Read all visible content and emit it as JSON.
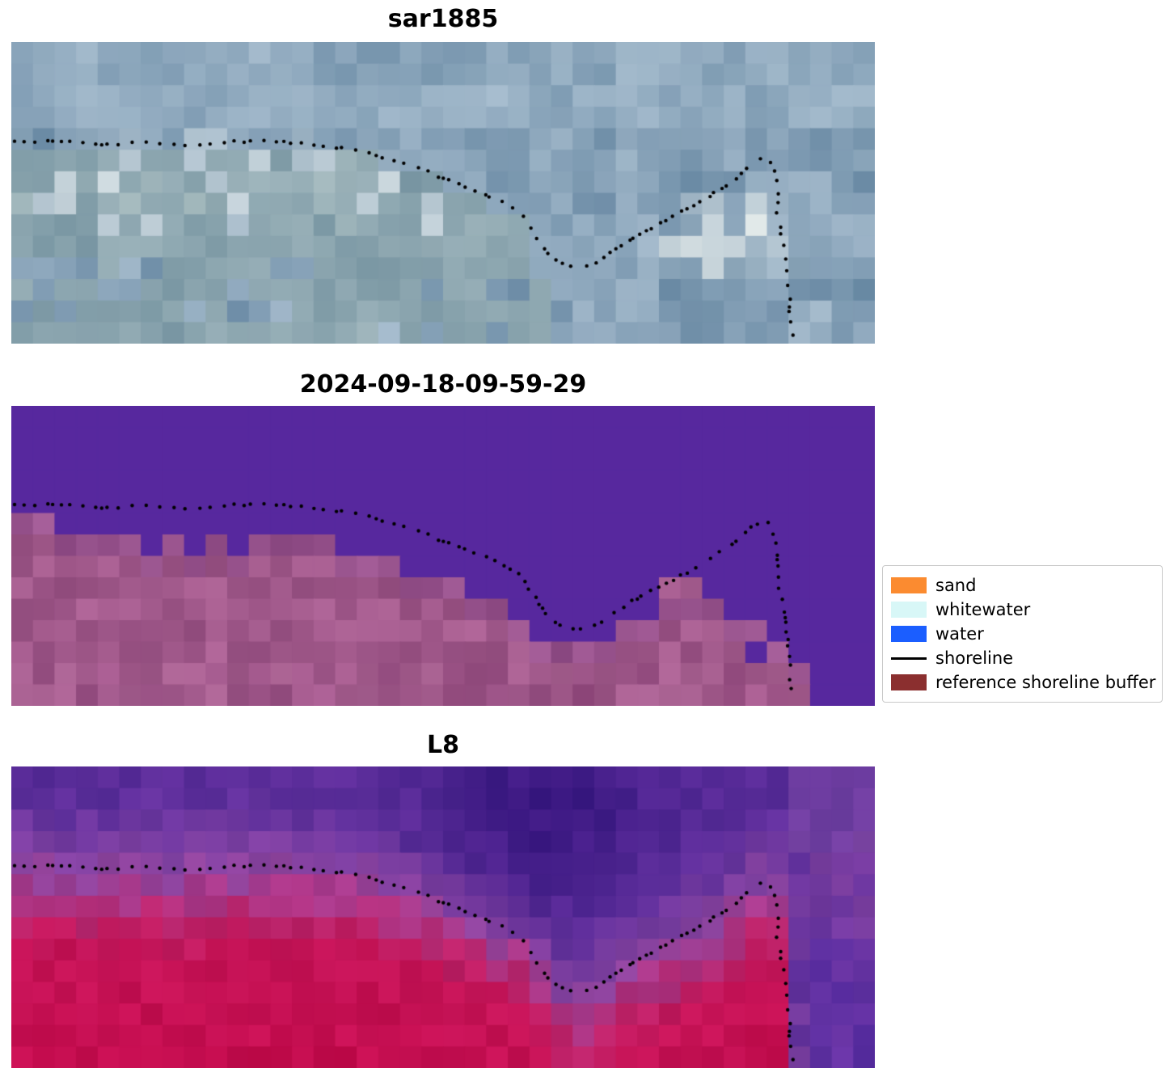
{
  "figure": {
    "panels": [
      {
        "title": "sar1885"
      },
      {
        "title": "2024-09-18-09-59-29"
      },
      {
        "title": "L8"
      }
    ],
    "legend": {
      "items": [
        {
          "label": "sand",
          "type": "patch",
          "color": "#fb8b30"
        },
        {
          "label": "whitewater",
          "type": "patch",
          "color": "#d8f7f7"
        },
        {
          "label": "water",
          "type": "patch",
          "color": "#1b5eff"
        },
        {
          "label": "shoreline",
          "type": "line",
          "color": "#000000"
        },
        {
          "label": "reference shoreline buffer",
          "type": "patch",
          "color": "#8b2f2f"
        }
      ]
    }
  },
  "chart_data": {
    "type": "heatmap",
    "title": "Coastal shoreline detection figure with three coregistered image tiles",
    "legend_position": "center right",
    "panels": [
      {
        "title": "sar1885",
        "kind": "optical-cloudy",
        "palette": {
          "deep": "#87a2b8",
          "mid": "#aabfd0",
          "pale": "#ccdae3",
          "white": "#f7faf5",
          "green": "#94ac9f"
        }
      },
      {
        "title": "2024-09-18-09-59-29",
        "kind": "classified",
        "water_color": "#57289e",
        "land_color": "#b2679a",
        "land_light": "#cd8cb1",
        "land_start_row": [
          5,
          5,
          6,
          6,
          6,
          6,
          7,
          6,
          7,
          6,
          7,
          6,
          6,
          6,
          6,
          7,
          7,
          7,
          8,
          8,
          8,
          9,
          9,
          10,
          11,
          11,
          11,
          11,
          10,
          10,
          9,
          9,
          9,
          10,
          10,
          11,
          12,
          14,
          14,
          14
        ],
        "land_islands": [
          [
            30,
            8
          ],
          [
            31,
            8
          ]
        ],
        "water_holes": [
          [
            34,
            11
          ]
        ]
      },
      {
        "title": "L8",
        "kind": "false-color",
        "ramp": [
          [
            -0.6,
            "#5b2c9c"
          ],
          [
            -0.25,
            "#6a35a5"
          ],
          [
            -0.1,
            "#8a46ab"
          ],
          [
            -0.02,
            "#9d4aa6"
          ],
          [
            0.04,
            "#b43e93"
          ],
          [
            0.12,
            "#c62973"
          ],
          [
            0.22,
            "#d01960"
          ],
          [
            0.6,
            "#cf1257"
          ]
        ],
        "dark_blob": "#481f8c",
        "right_water": "#6533ae",
        "right_top": "#a066b5"
      }
    ],
    "grid": {
      "cols": 40,
      "rows": 14
    },
    "coast_profile": [
      [
        0,
        0.335
      ],
      [
        0.06,
        0.33
      ],
      [
        0.1,
        0.345
      ],
      [
        0.16,
        0.338
      ],
      [
        0.2,
        0.348
      ],
      [
        0.25,
        0.335
      ],
      [
        0.3,
        0.332
      ],
      [
        0.35,
        0.345
      ],
      [
        0.4,
        0.362
      ],
      [
        0.44,
        0.395
      ],
      [
        0.48,
        0.43
      ],
      [
        0.52,
        0.475
      ],
      [
        0.56,
        0.52
      ],
      [
        0.59,
        0.565
      ],
      [
        0.605,
        0.63
      ],
      [
        0.625,
        0.715
      ],
      [
        0.645,
        0.745
      ],
      [
        0.665,
        0.75
      ],
      [
        0.69,
        0.715
      ],
      [
        0.72,
        0.655
      ],
      [
        0.75,
        0.61
      ],
      [
        0.78,
        0.565
      ],
      [
        0.81,
        0.515
      ],
      [
        0.84,
        0.455
      ],
      [
        0.862,
        0.4
      ],
      [
        0.875,
        0.385
      ],
      [
        0.89,
        0.4
      ],
      [
        0.902,
        0.41
      ],
      [
        1,
        0.41
      ]
    ],
    "shoreline_norm": [
      [
        0.005,
        0.335
      ],
      [
        0.06,
        0.33
      ],
      [
        0.1,
        0.345
      ],
      [
        0.16,
        0.338
      ],
      [
        0.2,
        0.348
      ],
      [
        0.25,
        0.335
      ],
      [
        0.3,
        0.332
      ],
      [
        0.35,
        0.345
      ],
      [
        0.4,
        0.362
      ],
      [
        0.44,
        0.395
      ],
      [
        0.48,
        0.43
      ],
      [
        0.52,
        0.475
      ],
      [
        0.56,
        0.52
      ],
      [
        0.59,
        0.565
      ],
      [
        0.605,
        0.63
      ],
      [
        0.625,
        0.715
      ],
      [
        0.645,
        0.745
      ],
      [
        0.665,
        0.75
      ],
      [
        0.69,
        0.715
      ],
      [
        0.72,
        0.655
      ],
      [
        0.75,
        0.61
      ],
      [
        0.78,
        0.565
      ],
      [
        0.81,
        0.515
      ],
      [
        0.84,
        0.455
      ],
      [
        0.862,
        0.4
      ],
      [
        0.875,
        0.385
      ],
      [
        0.882,
        0.41
      ],
      [
        0.886,
        0.445
      ],
      [
        0.889,
        0.5
      ],
      [
        0.888,
        0.555
      ],
      [
        0.891,
        0.615
      ],
      [
        0.896,
        0.675
      ],
      [
        0.899,
        0.73
      ],
      [
        0.9,
        0.79
      ],
      [
        0.902,
        0.85
      ],
      [
        0.903,
        0.91
      ],
      [
        0.906,
        0.975
      ]
    ]
  }
}
